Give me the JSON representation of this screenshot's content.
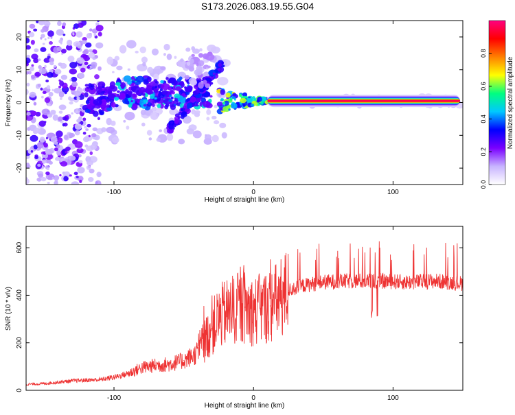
{
  "title": "S173.2026.083.19.55.G04",
  "chart_data": [
    {
      "type": "heatmap",
      "title": "S173.2026.083.19.55.G04",
      "xlabel": "Height of straight line (km)",
      "ylabel": "Frequency (Hz)",
      "xlim": [
        -163,
        150
      ],
      "ylim": [
        -25,
        25
      ],
      "xticks": [
        -100,
        0,
        100
      ],
      "yticks": [
        -20,
        -10,
        0,
        10,
        20
      ],
      "colorbar": {
        "label": "Normalized spectral amplitude",
        "range": [
          0,
          1
        ],
        "ticks": [
          0.0,
          0.2,
          0.4,
          0.6,
          0.8
        ],
        "tick_labels": [
          "0.0",
          "0.2",
          "0.4",
          "0.6",
          "0.8"
        ],
        "colormap": [
          "#ffffff",
          "#c8b4ff",
          "#7a00ff",
          "#0000ff",
          "#00c8ff",
          "#00ff80",
          "#ffff00",
          "#ff8000",
          "#ff0000",
          "#ff0080"
        ]
      },
      "features": [
        {
          "name": "scattered noise",
          "x_range": [
            -163,
            -110
          ],
          "freq_range": [
            -25,
            25
          ],
          "amplitude": 0.1
        },
        {
          "name": "main band",
          "x_range": [
            -120,
            -30
          ],
          "freq_center": 3,
          "amplitude": 0.3
        },
        {
          "name": "descending arc",
          "x_from": -60,
          "x_to": -22,
          "freq_from": -8,
          "freq_to": 12,
          "amplitude": 0.25
        },
        {
          "name": "convergence",
          "x_range": [
            -25,
            10
          ],
          "freq_center": 0.5,
          "amplitude": 0.6
        },
        {
          "name": "tone line",
          "x_range": [
            10,
            148
          ],
          "freq": 0.5,
          "amplitude": 0.98
        }
      ]
    },
    {
      "type": "line",
      "title": "",
      "xlabel": "Height of straight line (km)",
      "ylabel": "SNR (10 * v/v)",
      "xlim": [
        -163,
        150
      ],
      "ylim": [
        0,
        690
      ],
      "xticks": [
        -100,
        0,
        100
      ],
      "yticks": [
        0,
        200,
        400,
        600
      ],
      "series": [
        {
          "name": "SNR",
          "color": "#ee3333",
          "x": [
            -163,
            -150,
            -130,
            -110,
            -100,
            -90,
            -80,
            -70,
            -60,
            -50,
            -42,
            -36,
            -30,
            -24,
            -18,
            -12,
            -6,
            0,
            6,
            12,
            18,
            25,
            35,
            50,
            70,
            90,
            110,
            130,
            150
          ],
          "values": [
            25,
            28,
            40,
            45,
            55,
            70,
            95,
            105,
            110,
            125,
            150,
            200,
            260,
            310,
            330,
            340,
            350,
            330,
            345,
            355,
            380,
            420,
            440,
            455,
            460,
            460,
            455,
            460,
            450
          ]
        }
      ]
    }
  ]
}
